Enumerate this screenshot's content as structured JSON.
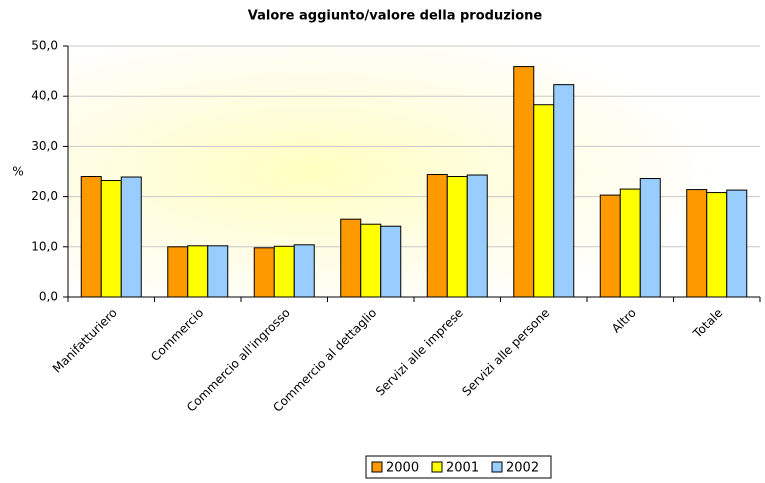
{
  "chart_data": {
    "type": "bar",
    "title": "Valore aggiunto/valore della produzione",
    "ylabel": "%",
    "categories": [
      "Manifatturiero",
      "Commercio",
      "Commercio all'ingrosso",
      "Commercio al dettaglio",
      "Servizi alle imprese",
      "Servizi alle persone",
      "Altro",
      "Totale"
    ],
    "series": [
      {
        "name": "2000",
        "color": "#ff9900",
        "values": [
          24.0,
          10.0,
          9.8,
          15.5,
          24.4,
          45.9,
          20.3,
          21.4
        ]
      },
      {
        "name": "2001",
        "color": "#ffff00",
        "values": [
          23.2,
          10.2,
          10.1,
          14.5,
          24.0,
          38.3,
          21.5,
          20.8
        ]
      },
      {
        "name": "2002",
        "color": "#99ccff",
        "values": [
          23.9,
          10.2,
          10.4,
          14.1,
          24.3,
          42.3,
          23.6,
          21.3
        ]
      }
    ],
    "ylim": [
      0,
      50
    ],
    "yticks": [
      {
        "value": 0,
        "label": "0,0"
      },
      {
        "value": 10,
        "label": "10,0"
      },
      {
        "value": 20,
        "label": "20,0"
      },
      {
        "value": 30,
        "label": "30,0"
      },
      {
        "value": 40,
        "label": "40,0"
      },
      {
        "value": 50,
        "label": "50,0"
      }
    ],
    "grid": true,
    "legend": "bottom"
  }
}
